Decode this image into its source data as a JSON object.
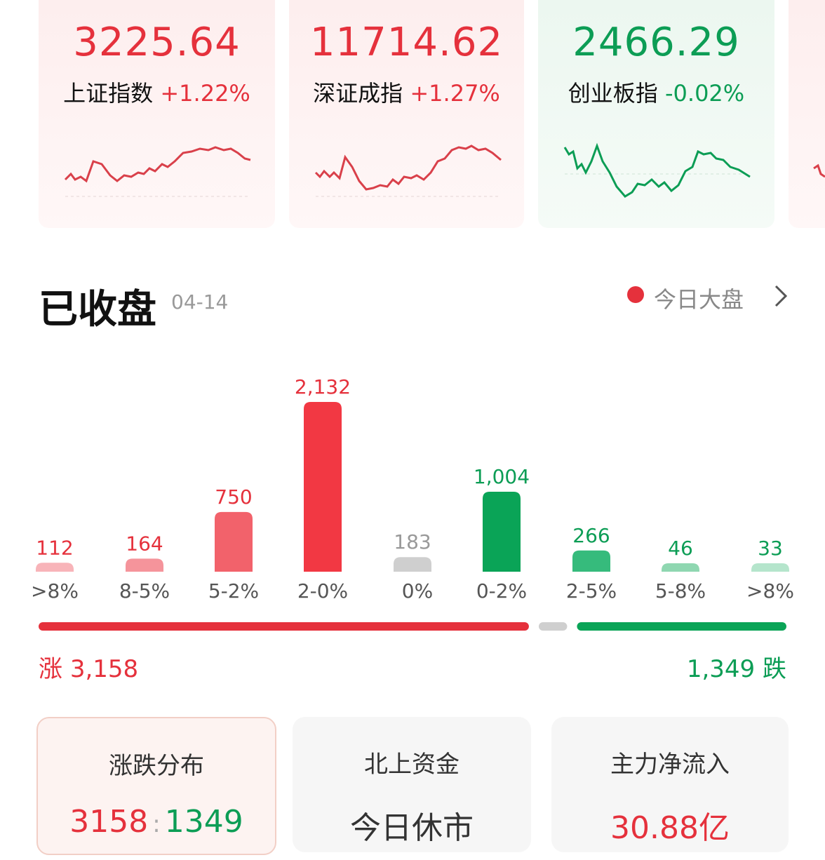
{
  "indices": [
    {
      "value": "3225.64",
      "name": "上证指数",
      "change": "+1.22%"
    },
    {
      "value": "11714.62",
      "name": "深证成指",
      "change": "+1.27%"
    },
    {
      "value": "2466.29",
      "name": "创业板指",
      "change": "-0.02%"
    }
  ],
  "header": {
    "title": "已收盘",
    "date": "04-14",
    "link": "今日大盘"
  },
  "distribution": {
    "type": "bar",
    "categories": [
      ">8%",
      "8-5%",
      "5-2%",
      "2-0%",
      "0%",
      "0-2%",
      "2-5%",
      "5-8%",
      ">8%"
    ],
    "values": [
      112,
      164,
      750,
      2132,
      183,
      1004,
      266,
      46,
      33
    ],
    "value_labels": [
      "112",
      "164",
      "750",
      "2,132",
      "183",
      "1,004",
      "266",
      "46",
      "33"
    ],
    "colors": [
      "#f8b4b9",
      "#f5949b",
      "#f2626b",
      "#f23843",
      "#cfcfcf",
      "#0aa457",
      "#36bb7c",
      "#8fd7b1",
      "#b5e5cc"
    ],
    "label_colors": [
      "#e5313c",
      "#e5313c",
      "#e5313c",
      "#e5313c",
      "#999999",
      "#0c9d55",
      "#0c9d55",
      "#0c9d55",
      "#0c9d55"
    ]
  },
  "summary": {
    "up_label": "涨",
    "up": {
      "value": 3158,
      "label": "3,158"
    },
    "down_label": "跌",
    "down": {
      "value": 1349,
      "label": "1,349"
    }
  },
  "cards": [
    {
      "title": "涨跌分布",
      "left": "3158",
      "separator": ":",
      "right": "1349"
    },
    {
      "title": "北上资金",
      "value": "今日休市"
    },
    {
      "title": "主力净流入",
      "value": "30.88亿"
    }
  ]
}
